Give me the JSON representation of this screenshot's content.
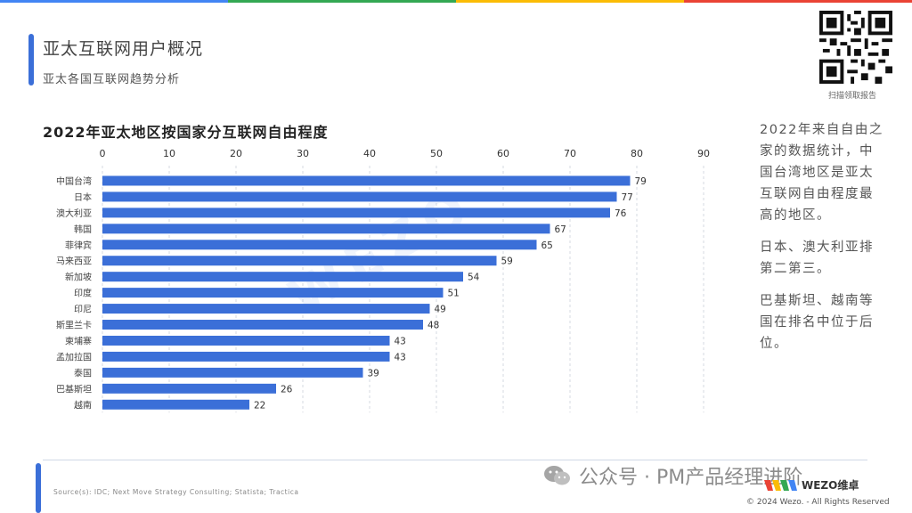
{
  "header": {
    "title": "亚太互联网用户概况",
    "subtitle": "亚太各国互联网趋势分析"
  },
  "qr": {
    "caption": "扫描领取报告"
  },
  "side_text": {
    "p1": "2022年来自自由之家的数据统计，中国台湾地区是亚太互联网自由程度最高的地区。",
    "p2": "日本、澳大利亚排第二第三。",
    "p3": "巴基斯坦、越南等国在排名中位于后位。"
  },
  "footer": {
    "source": "Source(s): IDC; Next Move Strategy Consulting; Statista; Tractica",
    "watermark": "公众号 · PM产品经理进阶",
    "brand": "WEZO维卓",
    "copyright": "© 2024 Wezo. - All Rights Reserved"
  },
  "colors": {
    "bar": "#3b6fd8",
    "accent": "#3b6fd8",
    "top_bar": [
      "#4285f4",
      "#34a853",
      "#fbbc05",
      "#ea4335"
    ]
  },
  "chart_data": {
    "type": "bar",
    "orientation": "horizontal",
    "title": "2022年亚太地区按国家分互联网自由程度",
    "categories": [
      "中国台湾",
      "日本",
      "澳大利亚",
      "韩国",
      "菲律宾",
      "马来西亚",
      "新加坡",
      "印度",
      "印尼",
      "斯里兰卡",
      "柬埔寨",
      "孟加拉国",
      "泰国",
      "巴基斯坦",
      "越南"
    ],
    "values": [
      79,
      77,
      76,
      67,
      65,
      59,
      54,
      51,
      49,
      48,
      43,
      43,
      39,
      26,
      22
    ],
    "xlim": [
      0,
      90
    ],
    "xticks": [
      0,
      10,
      20,
      30,
      40,
      50,
      60,
      70,
      80,
      90
    ],
    "axis_position": "top",
    "grid": "vertical dashed",
    "data_labels": true
  }
}
